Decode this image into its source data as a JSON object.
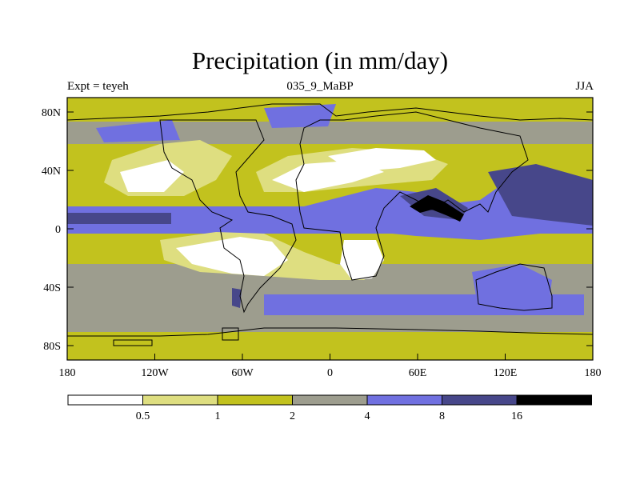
{
  "title": "Precipitation (in mm/day)",
  "subtitle_left": "Expt = teyeh",
  "subtitle_center": "035_9_MaBP",
  "subtitle_right": "JJA",
  "lat_labels": [
    "80N",
    "40N",
    "0",
    "40S",
    "80S"
  ],
  "lon_labels": [
    "180",
    "120W",
    "60W",
    "0",
    "60E",
    "120E",
    "180"
  ],
  "colorbar": {
    "labels": [
      "0.5",
      "1",
      "2",
      "4",
      "8",
      "16"
    ],
    "colors": [
      "#ffffff",
      "#dede80",
      "#c2c21e",
      "#9d9d8e",
      "#7070e0",
      "#47478a",
      "#000000"
    ]
  },
  "colors": {
    "white": "#ffffff",
    "light_yellow": "#dede80",
    "olive": "#c2c21e",
    "gray": "#9d9d8e",
    "blue": "#7070e0",
    "dark_blue": "#47478a",
    "black": "#000000"
  }
}
